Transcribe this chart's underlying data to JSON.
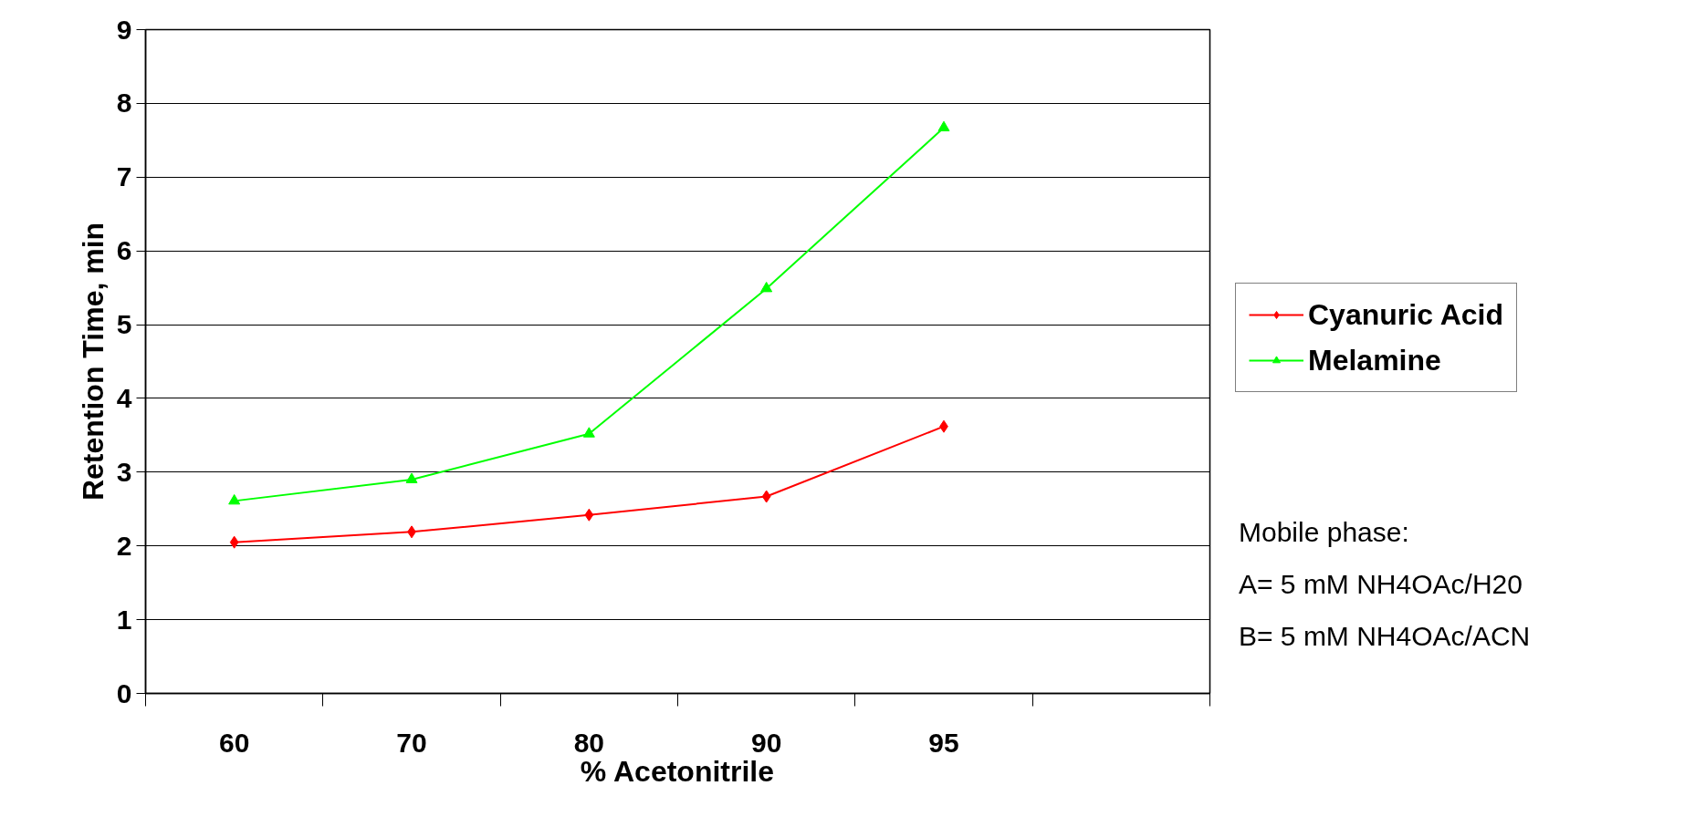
{
  "chart_data": {
    "type": "line",
    "xlabel": "% Acetonitrile",
    "ylabel": "Retention Time, min",
    "categories": [
      "60",
      "70",
      "80",
      "90",
      "95",
      null
    ],
    "series": [
      {
        "name": "Cyanuric Acid",
        "color": "#ff0000",
        "marker": "diamond",
        "values": [
          2.05,
          2.19,
          2.42,
          2.67,
          3.62,
          null
        ]
      },
      {
        "name": "Melamine",
        "color": "#00ff00",
        "marker": "triangle",
        "values": [
          2.61,
          2.9,
          3.52,
          5.49,
          7.67,
          null
        ]
      }
    ],
    "ylim": [
      0,
      9
    ],
    "yticks": [
      0,
      1,
      2,
      3,
      4,
      5,
      6,
      7,
      8,
      9
    ],
    "grid": "y",
    "legend": "right",
    "annotations": [
      "Mobile phase:\nA= 5 mM NH4OAc/H20\nB= 5 mM NH4OAc/ACN"
    ]
  }
}
